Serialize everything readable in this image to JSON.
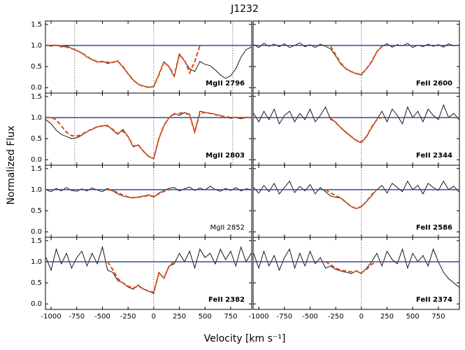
{
  "title": "J1232",
  "x_label": "Velocity [km s⁻¹]",
  "y_label": "Normalized Flux",
  "chart_data": {
    "type": "line",
    "x": [
      -1050,
      -1000,
      -950,
      -900,
      -850,
      -800,
      -750,
      -700,
      -650,
      -600,
      -550,
      -500,
      -450,
      -400,
      -350,
      -300,
      -250,
      -200,
      -150,
      -100,
      -50,
      0,
      50,
      100,
      150,
      200,
      250,
      300,
      350,
      400,
      450,
      500,
      550,
      600,
      650,
      700,
      750,
      800,
      850,
      900,
      950
    ],
    "xlim": [
      -1055,
      955
    ],
    "ylim": [
      -0.13,
      1.58
    ],
    "xticks": [
      -1000,
      -750,
      -500,
      -250,
      0,
      250,
      500,
      750
    ],
    "yticks": [
      {
        "value": 0,
        "label": "0.0"
      },
      0.5,
      {
        "value": 1,
        "label": "1.0"
      },
      1.5
    ],
    "continuum": 1,
    "continuum_color": "#1f3f8f",
    "panels": [
      {
        "label": "MgII 2796",
        "bold": true,
        "vlines": [
          -770,
          0,
          770
        ],
        "series": [
          {
            "color": "#000000",
            "style": "solid",
            "values": [
              1.0,
              0.98,
              1.01,
              0.96,
              0.99,
              0.93,
              0.88,
              0.82,
              0.72,
              0.66,
              0.6,
              0.63,
              0.57,
              0.6,
              0.64,
              0.48,
              0.33,
              0.18,
              0.08,
              0.04,
              0.01,
              0.02,
              0.32,
              0.62,
              0.48,
              0.25,
              0.8,
              0.62,
              0.45,
              0.38,
              0.62,
              0.55,
              0.52,
              0.42,
              0.3,
              0.22,
              0.28,
              0.45,
              0.72,
              0.9,
              0.96
            ]
          },
          {
            "color": "#e8541e",
            "style": "dashed",
            "values": [
              1.0,
              1.0,
              1.0,
              0.98,
              0.96,
              0.93,
              0.88,
              0.82,
              0.74,
              0.66,
              0.62,
              0.61,
              0.6,
              0.6,
              0.62,
              0.5,
              0.33,
              0.18,
              0.08,
              0.03,
              0.01,
              0.03,
              0.3,
              0.6,
              0.5,
              0.28,
              0.78,
              0.65,
              0.35,
              0.62,
              1.0,
              null,
              null,
              null,
              null,
              null,
              null,
              null,
              null,
              null,
              null
            ]
          }
        ]
      },
      {
        "label": "FeII 2600",
        "bold": true,
        "vlines": [
          0
        ],
        "series": [
          {
            "color": "#000000",
            "style": "solid",
            "values": [
              1.02,
              0.95,
              1.05,
              0.98,
              1.03,
              0.97,
              1.04,
              0.95,
              1.0,
              1.06,
              0.97,
              1.02,
              0.95,
              1.03,
              0.98,
              0.92,
              0.75,
              0.55,
              0.45,
              0.38,
              0.33,
              0.3,
              0.45,
              0.6,
              0.85,
              0.98,
              1.04,
              0.96,
              1.02,
              0.99,
              1.05,
              0.95,
              1.01,
              0.97,
              1.03,
              0.98,
              1.02,
              0.96,
              1.04,
              0.99,
              1.01
            ]
          },
          {
            "color": "#e8541e",
            "style": "dashed",
            "values": [
              null,
              null,
              null,
              null,
              null,
              null,
              null,
              null,
              null,
              null,
              null,
              null,
              null,
              null,
              null,
              0.98,
              0.78,
              0.58,
              0.45,
              0.38,
              0.33,
              0.32,
              0.45,
              0.62,
              0.85,
              0.98,
              null,
              null,
              null,
              null,
              null,
              null,
              null,
              null,
              null,
              null,
              null,
              null,
              null,
              null,
              null
            ]
          }
        ]
      },
      {
        "label": "MgII 2803",
        "bold": true,
        "vlines": [
          -770,
          0,
          770
        ],
        "series": [
          {
            "color": "#000000",
            "style": "solid",
            "values": [
              0.95,
              0.85,
              0.7,
              0.6,
              0.55,
              0.5,
              0.52,
              0.58,
              0.66,
              0.72,
              0.78,
              0.8,
              0.82,
              0.7,
              0.6,
              0.72,
              0.55,
              0.3,
              0.35,
              0.2,
              0.08,
              0.02,
              0.5,
              0.8,
              1.0,
              1.1,
              1.05,
              1.12,
              1.08,
              0.65,
              1.15,
              1.12,
              1.1,
              1.08,
              1.05,
              1.0,
              0.98,
              1.0,
              0.97,
              1.0,
              1.0
            ]
          },
          {
            "color": "#e8541e",
            "style": "dashed",
            "values": [
              1.0,
              1.0,
              0.95,
              0.8,
              0.65,
              0.57,
              0.56,
              0.6,
              0.67,
              0.73,
              0.78,
              0.8,
              0.8,
              0.72,
              0.62,
              0.68,
              0.55,
              0.32,
              0.35,
              0.2,
              0.08,
              0.03,
              0.5,
              0.82,
              1.0,
              1.08,
              1.1,
              1.12,
              1.05,
              0.66,
              1.1,
              1.12,
              1.1,
              1.07,
              1.04,
              1.02,
              1.0,
              1.0,
              1.0,
              1.0,
              1.0
            ]
          }
        ]
      },
      {
        "label": "FeII 2344",
        "bold": true,
        "vlines": [
          0
        ],
        "series": [
          {
            "color": "#000000",
            "style": "solid",
            "values": [
              1.1,
              0.9,
              1.15,
              0.95,
              1.2,
              0.85,
              1.05,
              1.15,
              0.9,
              1.1,
              0.95,
              1.2,
              0.9,
              1.05,
              1.25,
              0.95,
              0.9,
              0.75,
              0.65,
              0.55,
              0.45,
              0.4,
              0.55,
              0.75,
              0.95,
              1.15,
              0.9,
              1.2,
              1.05,
              0.85,
              1.25,
              1.0,
              1.15,
              0.9,
              1.2,
              1.05,
              0.95,
              1.3,
              1.0,
              1.1,
              0.95
            ]
          },
          {
            "color": "#e8541e",
            "style": "dashed",
            "values": [
              null,
              null,
              null,
              null,
              null,
              null,
              null,
              null,
              null,
              null,
              null,
              null,
              null,
              null,
              null,
              0.98,
              0.88,
              0.76,
              0.65,
              0.55,
              0.46,
              0.42,
              0.55,
              0.78,
              0.95,
              1.0,
              null,
              null,
              null,
              null,
              null,
              null,
              null,
              null,
              null,
              null,
              null,
              null,
              null,
              null,
              null
            ]
          }
        ]
      },
      {
        "label": "MgII 2852",
        "bold": false,
        "vlines": [
          0
        ],
        "series": [
          {
            "color": "#000000",
            "style": "solid",
            "values": [
              1.0,
              0.95,
              1.03,
              0.97,
              1.05,
              0.98,
              0.96,
              1.02,
              0.97,
              1.04,
              0.99,
              0.95,
              1.03,
              0.97,
              0.9,
              0.85,
              0.82,
              0.8,
              0.83,
              0.85,
              0.88,
              0.82,
              0.92,
              0.98,
              1.03,
              1.05,
              0.97,
              1.02,
              1.06,
              0.98,
              1.04,
              0.99,
              1.08,
              1.0,
              0.96,
              1.03,
              0.98,
              1.05,
              0.97,
              1.02,
              1.0
            ]
          },
          {
            "color": "#e8541e",
            "style": "dashed",
            "values": [
              null,
              null,
              null,
              null,
              null,
              null,
              null,
              null,
              null,
              null,
              null,
              null,
              1.0,
              0.98,
              0.93,
              0.87,
              0.83,
              0.81,
              0.82,
              0.84,
              0.86,
              0.84,
              0.9,
              0.96,
              1.0,
              null,
              null,
              null,
              null,
              null,
              null,
              null,
              null,
              null,
              null,
              null,
              null,
              null,
              null,
              null,
              null
            ]
          }
        ]
      },
      {
        "label": "FeII 2586",
        "bold": true,
        "vlines": [
          0
        ],
        "series": [
          {
            "color": "#000000",
            "style": "solid",
            "values": [
              1.05,
              0.92,
              1.1,
              0.95,
              1.15,
              0.9,
              1.05,
              1.2,
              0.93,
              1.08,
              0.97,
              1.12,
              0.9,
              1.05,
              0.95,
              0.85,
              0.82,
              0.8,
              0.7,
              0.6,
              0.55,
              0.6,
              0.72,
              0.85,
              1.0,
              1.1,
              0.92,
              1.15,
              1.05,
              0.95,
              1.2,
              1.0,
              1.1,
              0.9,
              1.15,
              1.05,
              0.98,
              1.2,
              1.0,
              1.08,
              0.95
            ]
          },
          {
            "color": "#e8541e",
            "style": "dashed",
            "values": [
              null,
              null,
              null,
              null,
              null,
              null,
              null,
              null,
              null,
              null,
              null,
              null,
              null,
              null,
              1.0,
              0.92,
              0.86,
              0.8,
              0.7,
              0.6,
              0.55,
              0.6,
              0.72,
              0.88,
              1.0,
              null,
              null,
              null,
              null,
              null,
              null,
              null,
              null,
              null,
              null,
              null,
              null,
              null,
              null,
              null,
              null
            ]
          }
        ]
      },
      {
        "label": "FeII 2382",
        "bold": true,
        "vlines": [
          0
        ],
        "series": [
          {
            "color": "#000000",
            "style": "solid",
            "values": [
              1.1,
              0.8,
              1.3,
              0.95,
              1.2,
              0.85,
              1.1,
              1.25,
              0.9,
              1.2,
              0.95,
              1.35,
              0.8,
              0.75,
              0.55,
              0.5,
              0.4,
              0.35,
              0.45,
              0.35,
              0.3,
              0.25,
              0.75,
              0.6,
              0.9,
              0.95,
              1.2,
              1.0,
              1.25,
              0.85,
              1.3,
              1.1,
              1.2,
              0.95,
              1.3,
              1.05,
              1.25,
              0.9,
              1.35,
              1.0,
              1.2
            ]
          },
          {
            "color": "#e8541e",
            "style": "dashed",
            "values": [
              null,
              null,
              null,
              null,
              null,
              null,
              null,
              null,
              null,
              null,
              null,
              null,
              1.0,
              0.82,
              0.6,
              0.5,
              0.42,
              0.38,
              0.42,
              0.36,
              0.3,
              0.28,
              0.72,
              0.62,
              0.9,
              1.0,
              null,
              null,
              null,
              null,
              null,
              null,
              null,
              null,
              null,
              null,
              null,
              null,
              null,
              null,
              null
            ]
          }
        ]
      },
      {
        "label": "FeII 2374",
        "bold": true,
        "vlines": [
          0
        ],
        "series": [
          {
            "color": "#000000",
            "style": "solid",
            "values": [
              1.2,
              0.85,
              1.25,
              0.9,
              1.15,
              0.8,
              1.1,
              1.3,
              0.85,
              1.2,
              0.9,
              1.25,
              0.95,
              1.1,
              0.85,
              0.9,
              0.82,
              0.78,
              0.75,
              0.72,
              0.78,
              0.72,
              0.85,
              1.0,
              1.2,
              0.9,
              1.25,
              1.05,
              0.95,
              1.3,
              0.85,
              1.2,
              1.0,
              1.15,
              0.9,
              1.3,
              1.0,
              0.75,
              0.6,
              0.5,
              0.4
            ]
          },
          {
            "color": "#e8541e",
            "style": "dashed",
            "values": [
              null,
              null,
              null,
              null,
              null,
              null,
              null,
              null,
              null,
              null,
              null,
              null,
              null,
              null,
              1.0,
              0.93,
              0.85,
              0.8,
              0.78,
              0.76,
              0.78,
              0.74,
              0.82,
              0.94,
              1.0,
              null,
              null,
              null,
              null,
              null,
              null,
              null,
              null,
              null,
              null,
              null,
              null,
              null,
              null,
              null,
              null
            ]
          }
        ]
      }
    ]
  }
}
